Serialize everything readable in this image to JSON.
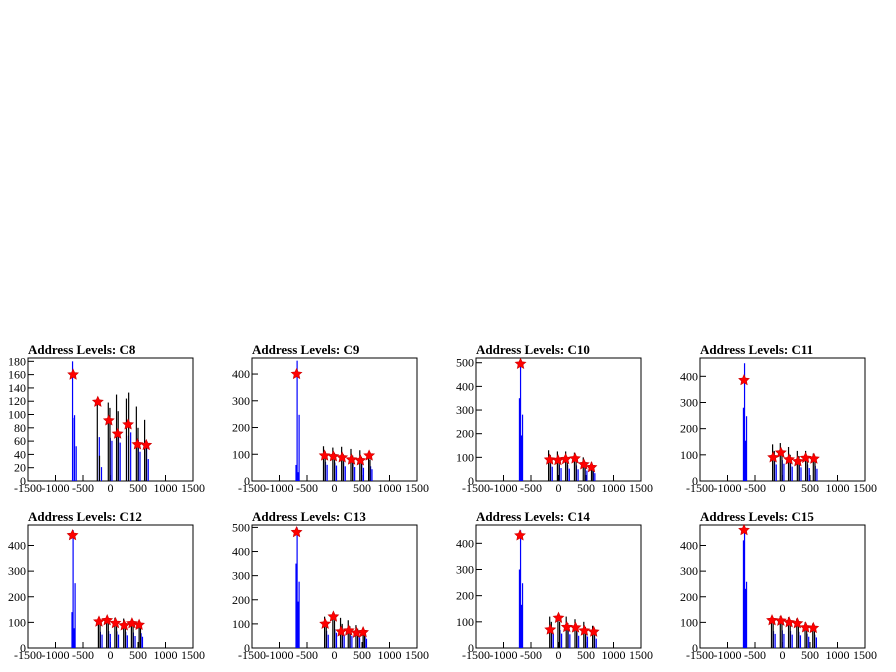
{
  "chart_data": [
    {
      "type": "bar",
      "title": "Address Levels: C8",
      "xlim": [
        -1500,
        1500
      ],
      "ylim": [
        0,
        185
      ],
      "xticks": [
        -1500,
        -1000,
        -500,
        0,
        500,
        1000,
        1500
      ],
      "yticks": [
        0,
        20,
        40,
        60,
        80,
        100,
        120,
        140,
        160,
        180
      ],
      "spikes": [
        {
          "x": -690,
          "y": 180
        },
        {
          "x": -660,
          "y": 95
        },
        {
          "x": -240,
          "y": 120
        },
        {
          "x": -200,
          "y": 38
        },
        {
          "x": -40,
          "y": 118
        },
        {
          "x": -10,
          "y": 110
        },
        {
          "x": 110,
          "y": 130
        },
        {
          "x": 140,
          "y": 105
        },
        {
          "x": 290,
          "y": 124
        },
        {
          "x": 330,
          "y": 133
        },
        {
          "x": 470,
          "y": 112
        },
        {
          "x": 500,
          "y": 80
        },
        {
          "x": 620,
          "y": 92
        },
        {
          "x": 650,
          "y": 60
        }
      ],
      "peaks": [
        {
          "x": -680,
          "y": 160
        },
        {
          "x": -230,
          "y": 119
        },
        {
          "x": -30,
          "y": 91
        },
        {
          "x": 130,
          "y": 71
        },
        {
          "x": 320,
          "y": 85
        },
        {
          "x": 490,
          "y": 55
        },
        {
          "x": 650,
          "y": 54
        }
      ]
    },
    {
      "type": "bar",
      "title": "Address Levels: C9",
      "xlim": [
        -1500,
        1500
      ],
      "ylim": [
        0,
        460
      ],
      "xticks": [
        -1500,
        -1000,
        -500,
        0,
        500,
        1000,
        1500
      ],
      "yticks": [
        0,
        100,
        200,
        300,
        400
      ],
      "spikes": [
        {
          "x": -700,
          "y": 60
        },
        {
          "x": -680,
          "y": 450
        },
        {
          "x": -200,
          "y": 130
        },
        {
          "x": -170,
          "y": 110
        },
        {
          "x": -30,
          "y": 125
        },
        {
          "x": 0,
          "y": 105
        },
        {
          "x": 130,
          "y": 128
        },
        {
          "x": 160,
          "y": 100
        },
        {
          "x": 300,
          "y": 120
        },
        {
          "x": 330,
          "y": 95
        },
        {
          "x": 460,
          "y": 115
        },
        {
          "x": 490,
          "y": 90
        },
        {
          "x": 620,
          "y": 100
        },
        {
          "x": 645,
          "y": 80
        }
      ],
      "peaks": [
        {
          "x": -690,
          "y": 400
        },
        {
          "x": -180,
          "y": 95
        },
        {
          "x": -20,
          "y": 92
        },
        {
          "x": 140,
          "y": 88
        },
        {
          "x": 310,
          "y": 80
        },
        {
          "x": 470,
          "y": 77
        },
        {
          "x": 630,
          "y": 95
        }
      ]
    },
    {
      "type": "bar",
      "title": "Address Levels: C10",
      "xlim": [
        -1500,
        1500
      ],
      "ylim": [
        0,
        520
      ],
      "xticks": [
        -1500,
        -1000,
        -500,
        0,
        500,
        1000,
        1500
      ],
      "yticks": [
        0,
        100,
        200,
        300,
        400,
        500
      ],
      "spikes": [
        {
          "x": -710,
          "y": 350
        },
        {
          "x": -690,
          "y": 510
        },
        {
          "x": -180,
          "y": 130
        },
        {
          "x": -150,
          "y": 110
        },
        {
          "x": -20,
          "y": 125
        },
        {
          "x": 10,
          "y": 100
        },
        {
          "x": 130,
          "y": 125
        },
        {
          "x": 160,
          "y": 95
        },
        {
          "x": 290,
          "y": 120
        },
        {
          "x": 320,
          "y": 90
        },
        {
          "x": 450,
          "y": 100
        },
        {
          "x": 480,
          "y": 80
        },
        {
          "x": 600,
          "y": 80
        },
        {
          "x": 625,
          "y": 60
        }
      ],
      "peaks": [
        {
          "x": -690,
          "y": 495
        },
        {
          "x": -160,
          "y": 90
        },
        {
          "x": -10,
          "y": 88
        },
        {
          "x": 130,
          "y": 92
        },
        {
          "x": 300,
          "y": 95
        },
        {
          "x": 460,
          "y": 70
        },
        {
          "x": 600,
          "y": 58
        }
      ]
    },
    {
      "type": "bar",
      "title": "Address Levels: C11",
      "xlim": [
        -1500,
        1500
      ],
      "ylim": [
        0,
        470
      ],
      "xticks": [
        -1500,
        -1000,
        -500,
        0,
        500,
        1000,
        1500
      ],
      "yticks": [
        0,
        100,
        200,
        300,
        400
      ],
      "spikes": [
        {
          "x": -710,
          "y": 280
        },
        {
          "x": -690,
          "y": 450
        },
        {
          "x": -180,
          "y": 140
        },
        {
          "x": -150,
          "y": 115
        },
        {
          "x": -40,
          "y": 145
        },
        {
          "x": -10,
          "y": 120
        },
        {
          "x": 110,
          "y": 130
        },
        {
          "x": 140,
          "y": 100
        },
        {
          "x": 270,
          "y": 115
        },
        {
          "x": 300,
          "y": 95
        },
        {
          "x": 420,
          "y": 115
        },
        {
          "x": 450,
          "y": 90
        },
        {
          "x": 560,
          "y": 105
        },
        {
          "x": 590,
          "y": 85
        }
      ],
      "peaks": [
        {
          "x": -700,
          "y": 385
        },
        {
          "x": -170,
          "y": 90
        },
        {
          "x": -30,
          "y": 108
        },
        {
          "x": 120,
          "y": 82
        },
        {
          "x": 280,
          "y": 75
        },
        {
          "x": 420,
          "y": 88
        },
        {
          "x": 570,
          "y": 85
        }
      ]
    },
    {
      "type": "bar",
      "title": "Address Levels: C12",
      "xlim": [
        -1500,
        1500
      ],
      "ylim": [
        0,
        480
      ],
      "xticks": [
        -1500,
        -1000,
        -500,
        0,
        500,
        1000,
        1500
      ],
      "yticks": [
        0,
        100,
        200,
        300,
        400
      ],
      "spikes": [
        {
          "x": -700,
          "y": 140
        },
        {
          "x": -680,
          "y": 460
        },
        {
          "x": -220,
          "y": 115
        },
        {
          "x": -190,
          "y": 95
        },
        {
          "x": -70,
          "y": 120
        },
        {
          "x": -40,
          "y": 100
        },
        {
          "x": 80,
          "y": 118
        },
        {
          "x": 110,
          "y": 95
        },
        {
          "x": 240,
          "y": 115
        },
        {
          "x": 270,
          "y": 90
        },
        {
          "x": 380,
          "y": 110
        },
        {
          "x": 410,
          "y": 85
        },
        {
          "x": 520,
          "y": 105
        },
        {
          "x": 545,
          "y": 80
        }
      ],
      "peaks": [
        {
          "x": -690,
          "y": 440
        },
        {
          "x": -210,
          "y": 103
        },
        {
          "x": -60,
          "y": 108
        },
        {
          "x": 90,
          "y": 97
        },
        {
          "x": 250,
          "y": 88
        },
        {
          "x": 390,
          "y": 96
        },
        {
          "x": 520,
          "y": 90
        }
      ]
    },
    {
      "type": "bar",
      "title": "Address Levels: C13",
      "xlim": [
        -1500,
        1500
      ],
      "ylim": [
        0,
        510
      ],
      "xticks": [
        -1500,
        -1000,
        -500,
        0,
        500,
        1000,
        1500
      ],
      "yticks": [
        0,
        100,
        200,
        300,
        400,
        500
      ],
      "spikes": [
        {
          "x": -700,
          "y": 350
        },
        {
          "x": -680,
          "y": 500
        },
        {
          "x": -180,
          "y": 130
        },
        {
          "x": -150,
          "y": 100
        },
        {
          "x": -30,
          "y": 140
        },
        {
          "x": 0,
          "y": 115
        },
        {
          "x": 110,
          "y": 125
        },
        {
          "x": 140,
          "y": 100
        },
        {
          "x": 250,
          "y": 115
        },
        {
          "x": 280,
          "y": 90
        },
        {
          "x": 390,
          "y": 95
        },
        {
          "x": 420,
          "y": 80
        },
        {
          "x": 520,
          "y": 85
        },
        {
          "x": 545,
          "y": 70
        }
      ],
      "peaks": [
        {
          "x": -690,
          "y": 480
        },
        {
          "x": -170,
          "y": 100
        },
        {
          "x": -20,
          "y": 130
        },
        {
          "x": 120,
          "y": 68
        },
        {
          "x": 260,
          "y": 72
        },
        {
          "x": 400,
          "y": 63
        },
        {
          "x": 520,
          "y": 65
        }
      ]
    },
    {
      "type": "bar",
      "title": "Address Levels: C14",
      "xlim": [
        -1500,
        1500
      ],
      "ylim": [
        0,
        470
      ],
      "xticks": [
        -1500,
        -1000,
        -500,
        0,
        500,
        1000,
        1500
      ],
      "yticks": [
        0,
        100,
        200,
        300,
        400
      ],
      "spikes": [
        {
          "x": -710,
          "y": 300
        },
        {
          "x": -690,
          "y": 450
        },
        {
          "x": -160,
          "y": 120
        },
        {
          "x": -130,
          "y": 100
        },
        {
          "x": -10,
          "y": 125
        },
        {
          "x": 20,
          "y": 100
        },
        {
          "x": 140,
          "y": 120
        },
        {
          "x": 170,
          "y": 95
        },
        {
          "x": 300,
          "y": 110
        },
        {
          "x": 330,
          "y": 85
        },
        {
          "x": 460,
          "y": 100
        },
        {
          "x": 490,
          "y": 80
        },
        {
          "x": 620,
          "y": 85
        },
        {
          "x": 650,
          "y": 65
        }
      ],
      "peaks": [
        {
          "x": -700,
          "y": 430
        },
        {
          "x": -150,
          "y": 70
        },
        {
          "x": 0,
          "y": 115
        },
        {
          "x": 150,
          "y": 80
        },
        {
          "x": 310,
          "y": 78
        },
        {
          "x": 470,
          "y": 66
        },
        {
          "x": 640,
          "y": 62
        }
      ]
    },
    {
      "type": "bar",
      "title": "Address Levels: C15",
      "xlim": [
        -1500,
        1500
      ],
      "ylim": [
        0,
        480
      ],
      "xticks": [
        -1500,
        -1000,
        -500,
        0,
        500,
        1000,
        1500
      ],
      "yticks": [
        0,
        100,
        200,
        300,
        400
      ],
      "spikes": [
        {
          "x": -710,
          "y": 420
        },
        {
          "x": -690,
          "y": 470
        },
        {
          "x": -200,
          "y": 120
        },
        {
          "x": -170,
          "y": 100
        },
        {
          "x": -40,
          "y": 125
        },
        {
          "x": -10,
          "y": 100
        },
        {
          "x": 110,
          "y": 120
        },
        {
          "x": 140,
          "y": 95
        },
        {
          "x": 260,
          "y": 115
        },
        {
          "x": 290,
          "y": 90
        },
        {
          "x": 410,
          "y": 100
        },
        {
          "x": 440,
          "y": 80
        },
        {
          "x": 550,
          "y": 95
        },
        {
          "x": 580,
          "y": 75
        }
      ],
      "peaks": [
        {
          "x": -700,
          "y": 460
        },
        {
          "x": -190,
          "y": 108
        },
        {
          "x": -30,
          "y": 106
        },
        {
          "x": 120,
          "y": 100
        },
        {
          "x": 270,
          "y": 96
        },
        {
          "x": 420,
          "y": 80
        },
        {
          "x": 560,
          "y": 78
        }
      ]
    }
  ]
}
